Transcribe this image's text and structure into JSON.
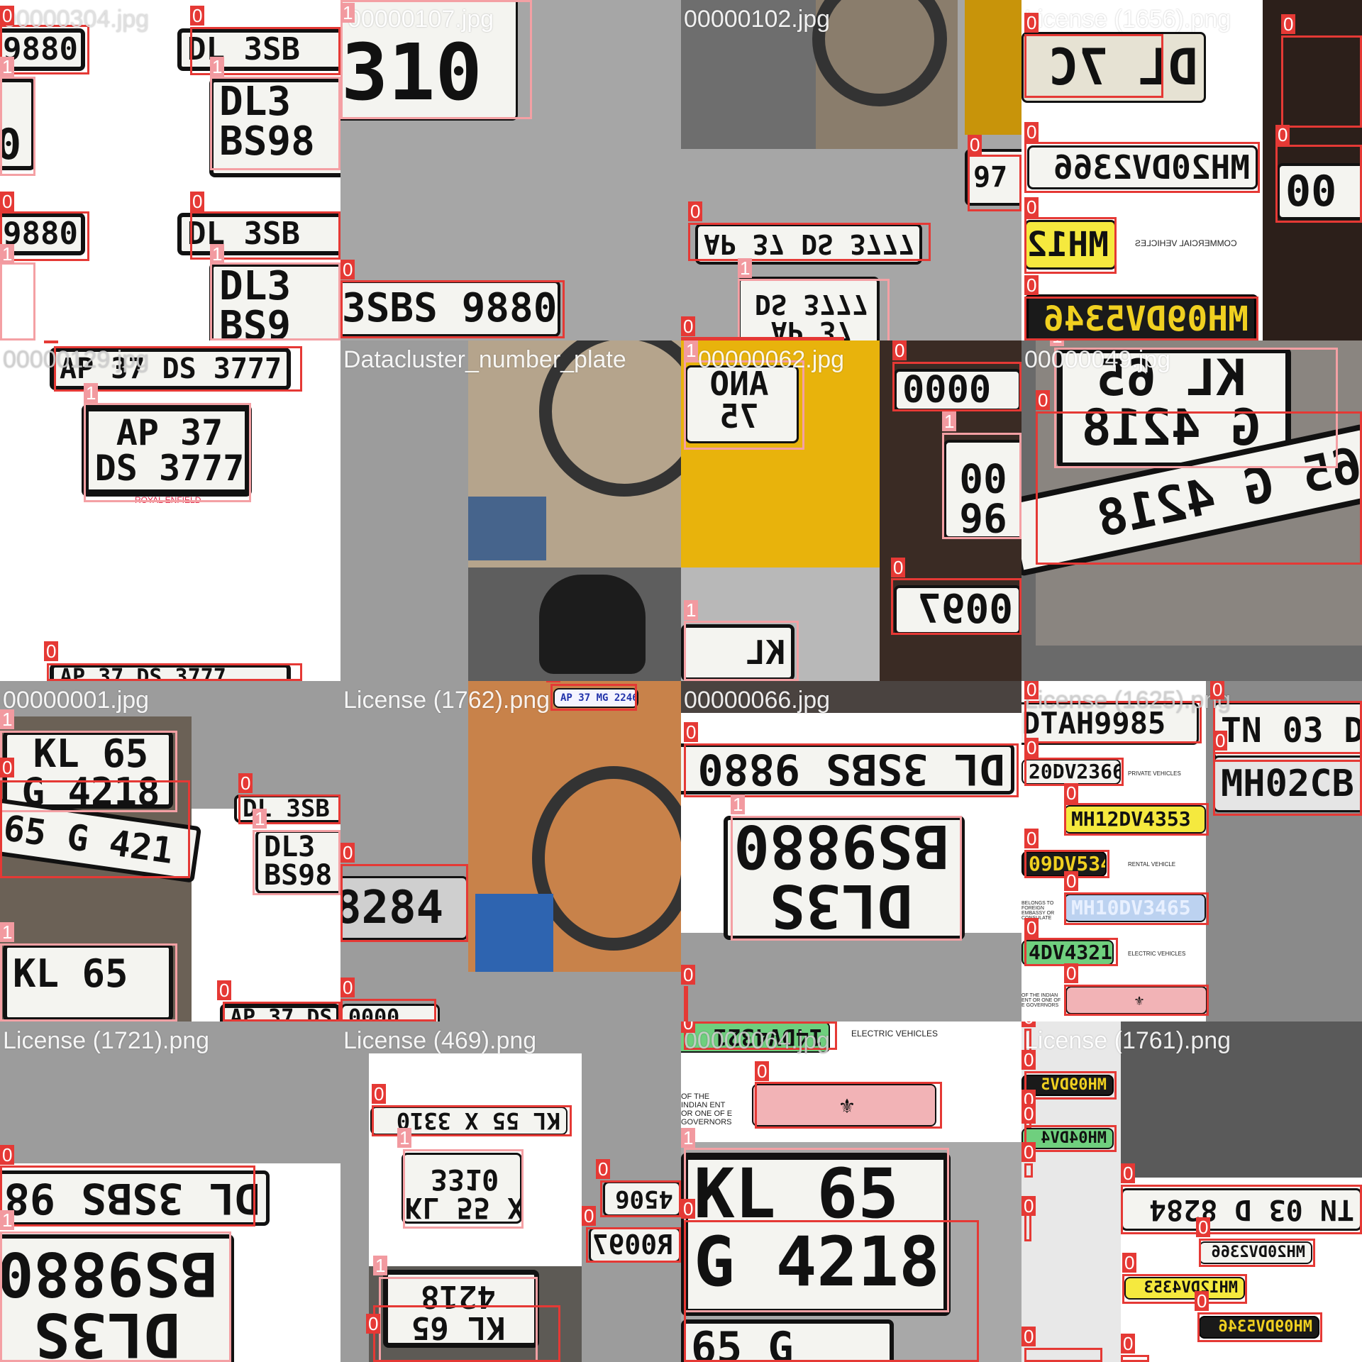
{
  "colors": {
    "class0": "#e53935",
    "class1": "#f4a0a4",
    "background": "#9c9c9c"
  },
  "tiles": [
    {
      "filename": "00000304.jpg",
      "plates": [
        "9880",
        "DL 3SB",
        "DL3",
        "BS98",
        "9880",
        "DL 3SB",
        "DL3",
        "BS9"
      ],
      "labels": [
        "0",
        "1",
        "0",
        "1",
        "0",
        "1",
        "0",
        "1"
      ]
    },
    {
      "filename": "00000107.jpg",
      "plates": [
        "310",
        "3SBS 9880"
      ],
      "labels": [
        "1",
        "0"
      ]
    },
    {
      "filename": "00000102.jpg",
      "plates": [
        "AP 37 DS 3777",
        "AP 37",
        "DS 3777",
        "97"
      ],
      "labels": [
        "0",
        "1",
        "0",
        "0"
      ]
    },
    {
      "filename": "License (1656).png",
      "plates": [
        "DL 7C",
        "MH20DV2366",
        "MH12",
        "MH09DV5346",
        "00"
      ],
      "labels": [
        "0",
        "0",
        "0",
        "0",
        "0",
        "0"
      ],
      "side_text": "COMMERCIAL VEHICLES"
    },
    {
      "filename": "00000129.jpg",
      "plates": [
        "AP 37 DS 3777",
        "AP 37",
        "DS 3777",
        "AP 37 DS 3777"
      ],
      "labels": [
        "0",
        "1",
        "0"
      ],
      "brand": "ROYAL ENFIELD"
    },
    {
      "filename": "Datacluster_number_plate",
      "plates": [],
      "labels": []
    },
    {
      "filename": "00000062.jpg",
      "plates": [
        "ANO",
        "75",
        "0000",
        "96",
        "00",
        "0097",
        "KL"
      ],
      "labels": [
        "1",
        "0",
        "1",
        "0",
        "1"
      ]
    },
    {
      "filename": "00000049.jpg",
      "plates": [
        "KL 65",
        "G 4218",
        "65 G 4218"
      ],
      "labels": [
        "1",
        "0"
      ]
    },
    {
      "filename": "00000001.jpg",
      "plates": [
        "KL 65",
        "G 4218",
        "65 G 421",
        "DL 3SB",
        "DL3",
        "BS98",
        "KL 65",
        "AP 37 DS"
      ],
      "labels": [
        "1",
        "0",
        "0",
        "1",
        "1",
        "0"
      ]
    },
    {
      "filename": "License (1762).png",
      "plates": [
        "AP 37 MG 2246",
        "8284",
        "0000"
      ],
      "labels": [
        "0",
        "0",
        "0"
      ]
    },
    {
      "filename": "00000066.jpg",
      "plates": [
        "DL 3SBS 9880",
        "DL3S",
        "BS9880"
      ],
      "labels": [
        "0",
        "1",
        "0"
      ]
    },
    {
      "filename": "License (1625).png",
      "plates": [
        "DTAH9985",
        "TN 03 D",
        "MH02CB",
        "20DV2366",
        "MH12DV4353",
        "09DV5346",
        "MH10DV3465",
        "4DV4321"
      ],
      "labels": [
        "0",
        "0",
        "0",
        "0",
        "0",
        "0",
        "0",
        "0",
        "0"
      ],
      "side_text": [
        "PRIVATE VEHICLES",
        "RENTAL VEHICLE",
        "ELECTRIC VEHICLES",
        "BELONGS TO FOREIGN EMBASSY OR CONSULATE",
        "OF THE INDIAN ENT OR ONE OF E GOVERNORS"
      ]
    },
    {
      "filename": "License (1721).png",
      "plates": [
        "DL 3SBS 98",
        "DL3S",
        "BS9880"
      ],
      "labels": [
        "0",
        "1"
      ]
    },
    {
      "filename": "License (469).png",
      "plates": [
        "KL 55 X 3310",
        "KL 55 X",
        "3310",
        "4506",
        "R0097",
        "KL 65",
        "4218"
      ],
      "labels": [
        "0",
        "1",
        "0",
        "0",
        "1",
        "0"
      ]
    },
    {
      "filename": "00000064.jpg",
      "plates": [
        "14DV4321",
        "KL 65",
        "G 4218",
        "65 G"
      ],
      "labels": [
        "0",
        "0",
        "1",
        "0"
      ],
      "side_text": [
        "ELECTRIC VEHICLES",
        "OF THE INDIAN ENT OR ONE OF E GOVERNORS"
      ]
    },
    {
      "filename": "License (1761).png",
      "plates": [
        "MH09DV5",
        "MH04DV4",
        "TN 03 D 8284",
        "MH20DV2366",
        "MH12DV4353",
        "MH09DV5346"
      ],
      "labels": [
        "0",
        "0",
        "0",
        "0",
        "0",
        "0",
        "0",
        "0",
        "0",
        "0",
        "0",
        "0"
      ]
    }
  ]
}
